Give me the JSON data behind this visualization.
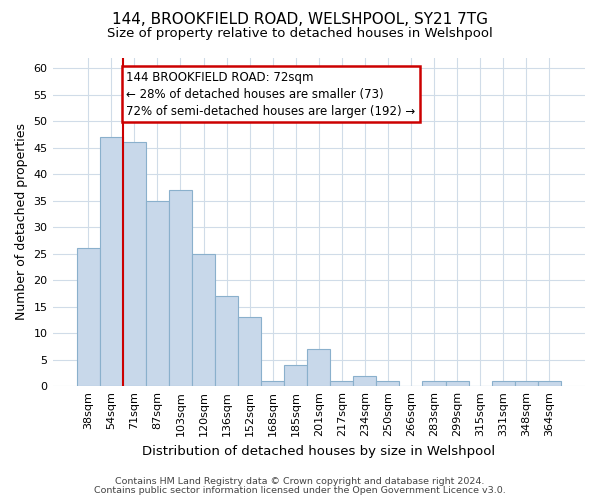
{
  "title_line1": "144, BROOKFIELD ROAD, WELSHPOOL, SY21 7TG",
  "title_line2": "Size of property relative to detached houses in Welshpool",
  "xlabel": "Distribution of detached houses by size in Welshpool",
  "ylabel": "Number of detached properties",
  "categories": [
    "38sqm",
    "54sqm",
    "71sqm",
    "87sqm",
    "103sqm",
    "120sqm",
    "136sqm",
    "152sqm",
    "168sqm",
    "185sqm",
    "201sqm",
    "217sqm",
    "234sqm",
    "250sqm",
    "266sqm",
    "283sqm",
    "299sqm",
    "315sqm",
    "331sqm",
    "348sqm",
    "364sqm"
  ],
  "values": [
    26,
    47,
    46,
    35,
    37,
    25,
    17,
    13,
    1,
    4,
    7,
    1,
    2,
    1,
    0,
    1,
    1,
    0,
    1,
    1,
    1
  ],
  "bar_color": "#c8d8ea",
  "bar_edge_color": "#8ab0cc",
  "vline_color": "#cc0000",
  "vline_x": 2.0,
  "annotation_text": "144 BROOKFIELD ROAD: 72sqm\n← 28% of detached houses are smaller (73)\n72% of semi-detached houses are larger (192) →",
  "annotation_box_facecolor": "#ffffff",
  "annotation_box_edgecolor": "#cc0000",
  "ylim": [
    0,
    62
  ],
  "yticks": [
    0,
    5,
    10,
    15,
    20,
    25,
    30,
    35,
    40,
    45,
    50,
    55,
    60
  ],
  "background_color": "#ffffff",
  "plot_background": "#ffffff",
  "grid_color": "#d0dce8",
  "title_fontsize": 11,
  "subtitle_fontsize": 9.5,
  "tick_fontsize": 8,
  "ylabel_fontsize": 9,
  "xlabel_fontsize": 9.5,
  "footnote_line1": "Contains HM Land Registry data © Crown copyright and database right 2024.",
  "footnote_line2": "Contains public sector information licensed under the Open Government Licence v3.0.",
  "footnote_fontsize": 6.8
}
